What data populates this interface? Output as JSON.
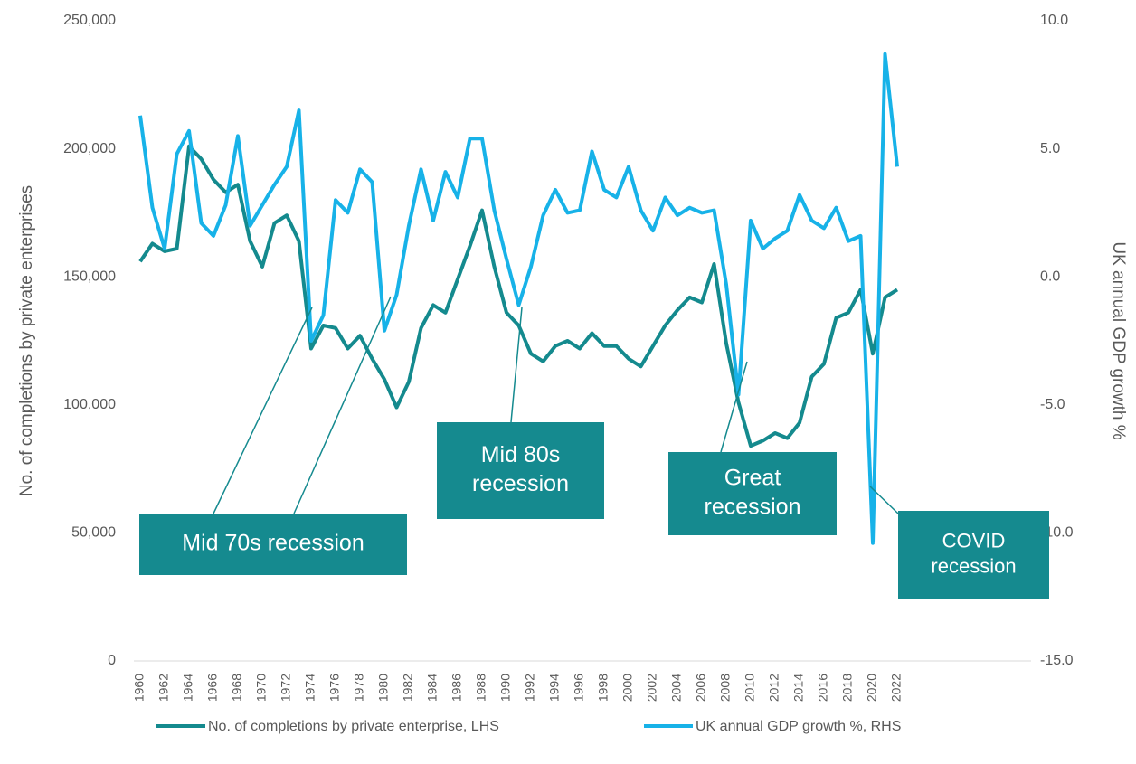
{
  "chart_data": {
    "type": "line",
    "y_label": "No. of completions by private enterprises",
    "y2_label": "UK annual GDP growth %",
    "categories": [
      "1960",
      null,
      "1962",
      null,
      "1964",
      null,
      "1966",
      null,
      "1968",
      null,
      "1970",
      null,
      "1972",
      null,
      "1974",
      null,
      "1976",
      null,
      "1978",
      null,
      "1980",
      null,
      "1982",
      null,
      "1984",
      null,
      "1986",
      null,
      "1988",
      null,
      "1990",
      null,
      "1992",
      null,
      "1994",
      null,
      "1996",
      null,
      "1998",
      null,
      "2000",
      null,
      "2002",
      null,
      "2004",
      null,
      "2006",
      null,
      "2008",
      null,
      "2010",
      null,
      "2012",
      null,
      "2014",
      null,
      "2016",
      null,
      "2018",
      null,
      "2020",
      null,
      "2022"
    ],
    "series": [
      {
        "name": "No. of completions by private enterprise, LHS",
        "color": "#148a8e",
        "axis": "y",
        "values": [
          156000,
          163000,
          160000,
          161000,
          201000,
          196000,
          188000,
          183000,
          186000,
          164000,
          154000,
          171000,
          174000,
          164000,
          122000,
          131000,
          130000,
          122000,
          127000,
          118000,
          110000,
          99000,
          109000,
          130000,
          139000,
          136000,
          149000,
          162000,
          176000,
          154000,
          136000,
          131000,
          120000,
          117000,
          123000,
          125000,
          122000,
          128000,
          123000,
          123000,
          118000,
          115000,
          123000,
          131000,
          137000,
          142000,
          140000,
          155000,
          124000,
          101000,
          84000,
          86000,
          89000,
          87000,
          93000,
          111000,
          116000,
          134000,
          136000,
          145000,
          120000,
          142000,
          145000
        ]
      },
      {
        "name": "UK annual GDP growth %, RHS",
        "color": "#17b2e8",
        "axis": "y2",
        "values": [
          6.3,
          2.7,
          1.1,
          4.8,
          5.7,
          2.1,
          1.6,
          2.8,
          5.5,
          2.0,
          2.8,
          3.6,
          4.3,
          6.5,
          -2.5,
          -1.5,
          3.0,
          2.5,
          4.2,
          3.7,
          -2.1,
          -0.7,
          2.0,
          4.2,
          2.2,
          4.1,
          3.1,
          5.4,
          5.4,
          2.6,
          0.7,
          -1.1,
          0.4,
          2.4,
          3.4,
          2.5,
          2.6,
          4.9,
          3.4,
          3.1,
          4.3,
          2.6,
          1.8,
          3.1,
          2.4,
          2.7,
          2.5,
          2.6,
          -0.3,
          -4.6,
          2.2,
          1.1,
          1.5,
          1.8,
          3.2,
          2.2,
          1.9,
          2.7,
          1.4,
          1.6,
          -10.4,
          8.7,
          4.3
        ]
      }
    ],
    "ylim": [
      0,
      250000
    ],
    "yticks": [
      0,
      {
        "value": 50000,
        "label": "50,000"
      },
      {
        "value": 100000,
        "label": "100,000"
      },
      {
        "value": 150000,
        "label": "150,000"
      },
      {
        "value": 200000,
        "label": "200,000"
      },
      {
        "value": 250000,
        "label": "250,000"
      }
    ],
    "y2lim": [
      -15,
      10
    ],
    "y2ticks": [
      {
        "value": -15,
        "label": "-15.0"
      },
      {
        "value": -10,
        "label": "-10.0"
      },
      {
        "value": -5,
        "label": "-5.0"
      },
      {
        "value": 0,
        "label": "0.0"
      },
      {
        "value": 5,
        "label": "5.0"
      },
      {
        "value": 10,
        "label": "10.0"
      }
    ],
    "grid": false,
    "legend": "bottom",
    "annotations": [
      {
        "lines": [
          "Mid 70s recession"
        ],
        "color": "#158a8f"
      },
      {
        "lines": [
          "Mid 80s",
          "recession"
        ],
        "color": "#158a8f"
      },
      {
        "lines": [
          "Great",
          "recession"
        ],
        "color": "#158a8f"
      },
      {
        "lines": [
          "COVID",
          "recession"
        ],
        "color": "#158a8f"
      }
    ]
  }
}
